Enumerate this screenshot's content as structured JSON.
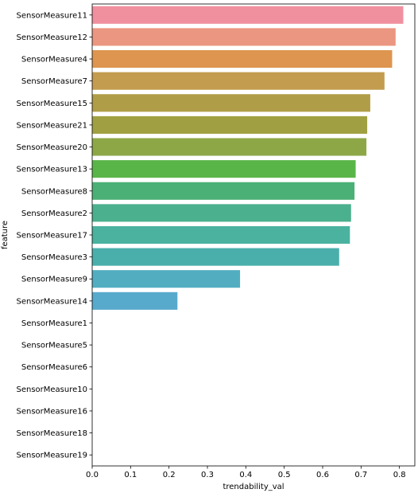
{
  "chart_data": {
    "type": "bar",
    "orientation": "horizontal",
    "xlabel": "trendability_val",
    "ylabel": "feature",
    "xlim": [
      0,
      0.84
    ],
    "xticks": [
      0.0,
      0.1,
      0.2,
      0.3,
      0.4,
      0.5,
      0.6,
      0.7,
      0.8
    ],
    "xtick_labels": [
      "0.0",
      "0.1",
      "0.2",
      "0.3",
      "0.4",
      "0.5",
      "0.6",
      "0.7",
      "0.8"
    ],
    "grid": false,
    "categories": [
      "SensorMeasure11",
      "SensorMeasure12",
      "SensorMeasure4",
      "SensorMeasure7",
      "SensorMeasure15",
      "SensorMeasure21",
      "SensorMeasure20",
      "SensorMeasure13",
      "SensorMeasure8",
      "SensorMeasure2",
      "SensorMeasure17",
      "SensorMeasure3",
      "SensorMeasure9",
      "SensorMeasure14",
      "SensorMeasure1",
      "SensorMeasure5",
      "SensorMeasure6",
      "SensorMeasure10",
      "SensorMeasure16",
      "SensorMeasure18",
      "SensorMeasure19"
    ],
    "values": [
      0.81,
      0.79,
      0.781,
      0.761,
      0.724,
      0.716,
      0.714,
      0.686,
      0.683,
      0.674,
      0.671,
      0.643,
      0.385,
      0.222,
      0,
      0,
      0,
      0,
      0,
      0,
      0
    ],
    "colors": [
      "#f0909f",
      "#eb9680",
      "#dd9550",
      "#c49c4f",
      "#b09d47",
      "#a0a043",
      "#8da747",
      "#5ab549",
      "#4bb075",
      "#4bb08d",
      "#4ab29f",
      "#4aafab",
      "#52adc0",
      "#58aacc",
      "#6b9fd6",
      "#8d95e0",
      "#a98ae2",
      "#c67fe0",
      "#e27ad6",
      "#ee84b8",
      "#f08aa3"
    ]
  }
}
